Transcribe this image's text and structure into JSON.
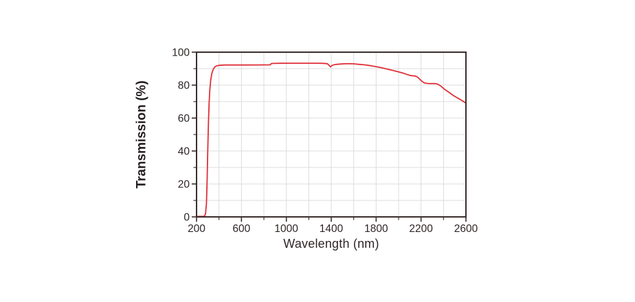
{
  "chart_data": {
    "type": "line",
    "title": "",
    "xlabel": "Wavelength (nm)",
    "ylabel": "Transmission (%)",
    "xlim": [
      200,
      2600
    ],
    "ylim": [
      0,
      100
    ],
    "x_major_ticks": [
      200,
      600,
      1000,
      1400,
      1800,
      2200,
      2600
    ],
    "x_minor_tick_step": 200,
    "y_major_ticks": [
      0,
      20,
      40,
      60,
      80,
      100
    ],
    "y_minor_tick_step": 10,
    "grid": "on",
    "grid_x_step_nm": 200,
    "grid_y_step_pct": 10,
    "legend": "none",
    "colors": {
      "curve": "#df3038",
      "axis": "#3a2d2d",
      "grid": "#dcdcdc",
      "text": "#2e2526",
      "background": "#ffffff"
    },
    "series": [
      {
        "name": "Transmission",
        "points": [
          [
            200,
            0.3
          ],
          [
            240,
            0.3
          ],
          [
            262,
            0.3
          ],
          [
            272,
            0.6
          ],
          [
            280,
            2
          ],
          [
            288,
            8
          ],
          [
            294,
            22
          ],
          [
            300,
            40
          ],
          [
            306,
            57
          ],
          [
            312,
            69
          ],
          [
            318,
            77
          ],
          [
            326,
            83
          ],
          [
            336,
            87
          ],
          [
            348,
            89.5
          ],
          [
            362,
            91
          ],
          [
            380,
            91.7
          ],
          [
            400,
            92.0
          ],
          [
            450,
            92.2
          ],
          [
            550,
            92.2
          ],
          [
            650,
            92.2
          ],
          [
            750,
            92.25
          ],
          [
            830,
            92.3
          ],
          [
            856,
            92.3
          ],
          [
            864,
            93.0
          ],
          [
            880,
            93.15
          ],
          [
            950,
            93.25
          ],
          [
            1050,
            93.3
          ],
          [
            1150,
            93.3
          ],
          [
            1250,
            93.3
          ],
          [
            1330,
            93.2
          ],
          [
            1365,
            93.0
          ],
          [
            1378,
            92.2
          ],
          [
            1392,
            91.1
          ],
          [
            1405,
            91.8
          ],
          [
            1420,
            92.3
          ],
          [
            1445,
            92.6
          ],
          [
            1480,
            92.8
          ],
          [
            1520,
            92.95
          ],
          [
            1560,
            93.0
          ],
          [
            1600,
            92.9
          ],
          [
            1650,
            92.6
          ],
          [
            1700,
            92.3
          ],
          [
            1750,
            91.8
          ],
          [
            1800,
            91.2
          ],
          [
            1850,
            90.5
          ],
          [
            1900,
            89.7
          ],
          [
            1950,
            88.9
          ],
          [
            2000,
            88.0
          ],
          [
            2040,
            87.3
          ],
          [
            2070,
            86.6
          ],
          [
            2100,
            85.9
          ],
          [
            2120,
            85.7
          ],
          [
            2150,
            85.5
          ],
          [
            2170,
            84.8
          ],
          [
            2190,
            83.5
          ],
          [
            2210,
            82.2
          ],
          [
            2230,
            81.3
          ],
          [
            2260,
            81.0
          ],
          [
            2290,
            80.9
          ],
          [
            2320,
            81.0
          ],
          [
            2350,
            80.6
          ],
          [
            2380,
            79.2
          ],
          [
            2410,
            77.4
          ],
          [
            2450,
            75.6
          ],
          [
            2490,
            73.6
          ],
          [
            2530,
            72.0
          ],
          [
            2570,
            70.4
          ],
          [
            2600,
            69.0
          ]
        ]
      }
    ]
  }
}
